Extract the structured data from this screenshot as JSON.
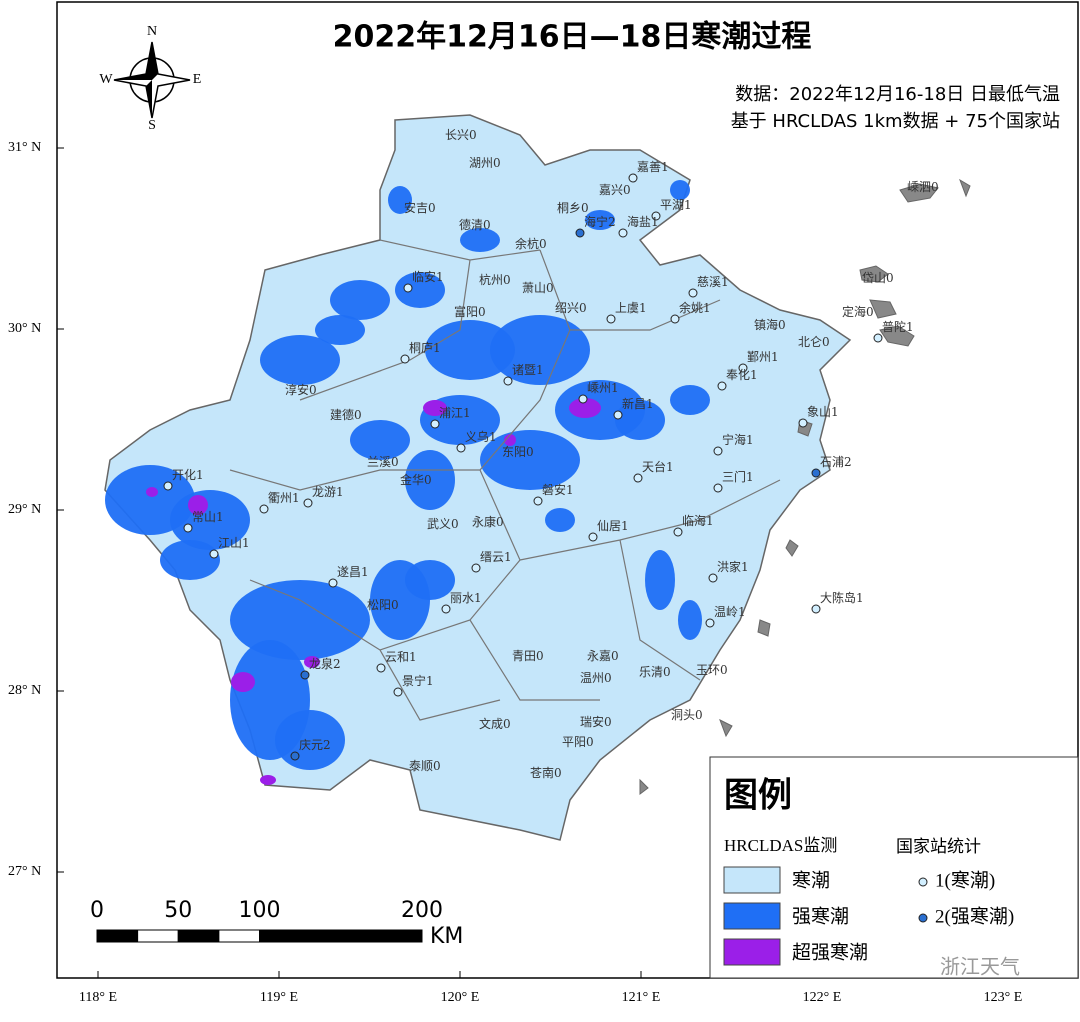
{
  "title": "2022年12月16日—18日寒潮过程",
  "subtitle": [
    "数据：2022年12月16-18日 日最低气温",
    "基于 HRCLDAS 1km数据 + 75个国家站"
  ],
  "compass": [
    "N",
    "E",
    "S",
    "W"
  ],
  "lat_labels": [
    "31° N",
    "30° N",
    "29° N",
    "28° N",
    "27° N"
  ],
  "lon_labels": [
    "118° E",
    "119° E",
    "120° E",
    "121° E",
    "122° E",
    "123° E"
  ],
  "legend": {
    "title": "图例",
    "group1": "HRCLDAS监测",
    "group2": "国家站统计",
    "items": [
      {
        "label": "寒潮",
        "color": "#c5e6fa"
      },
      {
        "label": "强寒潮",
        "color": "#1f6ff5"
      },
      {
        "label": "超强寒潮",
        "color": "#9b1fe8"
      }
    ],
    "station_items": [
      {
        "label": "1(寒潮)",
        "value": 1,
        "color": "#d2efff"
      },
      {
        "label": "2(强寒潮)",
        "value": 2,
        "color": "#2a6fd0"
      }
    ]
  },
  "scale_bar": {
    "ticks": [
      0,
      50,
      100,
      200
    ],
    "unit": "KM"
  },
  "watermark": "浙江天气",
  "stations": [
    {
      "name": "长兴",
      "value": 0
    },
    {
      "name": "湖州",
      "value": 0
    },
    {
      "name": "嘉善",
      "value": 1
    },
    {
      "name": "嘉兴",
      "value": 0
    },
    {
      "name": "平湖",
      "value": 1
    },
    {
      "name": "桐乡",
      "value": 0
    },
    {
      "name": "安吉",
      "value": 0
    },
    {
      "name": "德清",
      "value": 0
    },
    {
      "name": "海宁",
      "value": 2
    },
    {
      "name": "海盐",
      "value": 1
    },
    {
      "name": "余杭",
      "value": 0
    },
    {
      "name": "嵊泗",
      "value": 0
    },
    {
      "name": "临安",
      "value": 1
    },
    {
      "name": "杭州",
      "value": 0
    },
    {
      "name": "萧山",
      "value": 0
    },
    {
      "name": "岱山",
      "value": 0
    },
    {
      "name": "富阳",
      "value": 0
    },
    {
      "name": "绍兴",
      "value": 0
    },
    {
      "name": "上虞",
      "value": 1
    },
    {
      "name": "余姚",
      "value": 1
    },
    {
      "name": "慈溪",
      "value": 1
    },
    {
      "name": "定海",
      "value": 0
    },
    {
      "name": "镇海",
      "value": 0
    },
    {
      "name": "北仑",
      "value": 0
    },
    {
      "name": "普陀",
      "value": 1
    },
    {
      "name": "鄞州",
      "value": 1
    },
    {
      "name": "桐庐",
      "value": 1
    },
    {
      "name": "诸暨",
      "value": 1
    },
    {
      "name": "奉化",
      "value": 1
    },
    {
      "name": "淳安",
      "value": 0
    },
    {
      "name": "建德",
      "value": 0
    },
    {
      "name": "嵊州",
      "value": 1
    },
    {
      "name": "新昌",
      "value": 1
    },
    {
      "name": "浦江",
      "value": 1
    },
    {
      "name": "象山",
      "value": 1
    },
    {
      "name": "义乌",
      "value": 1
    },
    {
      "name": "宁海",
      "value": 1
    },
    {
      "name": "东阳",
      "value": 0
    },
    {
      "name": "兰溪",
      "value": 0
    },
    {
      "name": "石浦",
      "value": 2
    },
    {
      "name": "开化",
      "value": 1
    },
    {
      "name": "金华",
      "value": 0
    },
    {
      "name": "天台",
      "value": 1
    },
    {
      "name": "三门",
      "value": 1
    },
    {
      "name": "龙游",
      "value": 1
    },
    {
      "name": "衢州",
      "value": 1
    },
    {
      "name": "磐安",
      "value": 1
    },
    {
      "name": "常山",
      "value": 1
    },
    {
      "name": "武义",
      "value": 0
    },
    {
      "name": "永康",
      "value": 0
    },
    {
      "name": "仙居",
      "value": 1
    },
    {
      "name": "临海",
      "value": 1
    },
    {
      "name": "江山",
      "value": 1
    },
    {
      "name": "缙云",
      "value": 1
    },
    {
      "name": "遂昌",
      "value": 1
    },
    {
      "name": "洪家",
      "value": 1
    },
    {
      "name": "大陈岛",
      "value": 1
    },
    {
      "name": "松阳",
      "value": 0
    },
    {
      "name": "丽水",
      "value": 1
    },
    {
      "name": "温岭",
      "value": 1
    },
    {
      "name": "云和",
      "value": 1
    },
    {
      "name": "青田",
      "value": 0
    },
    {
      "name": "永嘉",
      "value": 0
    },
    {
      "name": "乐清",
      "value": 0
    },
    {
      "name": "玉环",
      "value": 0
    },
    {
      "name": "龙泉",
      "value": 2
    },
    {
      "name": "景宁",
      "value": 1
    },
    {
      "name": "温州",
      "value": 0
    },
    {
      "name": "洞头",
      "value": 0
    },
    {
      "name": "文成",
      "value": 0
    },
    {
      "name": "瑞安",
      "value": 0
    },
    {
      "name": "平阳",
      "value": 0
    },
    {
      "name": "庆元",
      "value": 2
    },
    {
      "name": "泰顺",
      "value": 0
    },
    {
      "name": "苍南",
      "value": 0
    }
  ]
}
